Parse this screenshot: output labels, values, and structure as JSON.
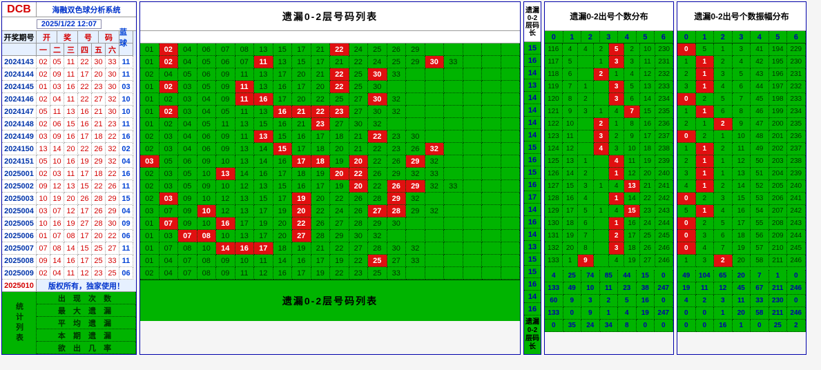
{
  "logo": "DCB",
  "system_title": "海融双色球分析系统",
  "datetime": "2025/1/22 12:07",
  "left_header": {
    "issue": "开奖期号",
    "kai": "开",
    "jiang": "奖",
    "hao": "号",
    "ma": "码",
    "cols": [
      "一",
      "二",
      "三",
      "四",
      "五",
      "六"
    ],
    "blue": "蓝球"
  },
  "current_issue": "2025010",
  "copyright": "版权所有，独家使用！",
  "stats_side": "统计列表",
  "stats_rows": [
    "出 现 次 数",
    "最 大 遗 漏",
    "平 均 遗 漏",
    "本 期 遗 漏",
    "欲 出 几 率"
  ],
  "mid_title": "遗漏0-2层号码列表",
  "mid_footer": "遗漏0-2层号码列表",
  "vbar_title": "遗漏0-2层码长",
  "vbar_values": [
    15,
    16,
    14,
    13,
    14,
    14,
    14,
    14,
    15,
    16,
    15,
    16,
    17,
    14,
    16,
    14,
    13,
    15,
    15,
    16,
    14,
    16
  ],
  "vbar_footer": "遗漏0-2层码长",
  "r1_title": "遗漏0-2出号个数分布",
  "r2_title": "遗漏0-2出号个数振幅分布",
  "r_hdr": [
    "0",
    "1",
    "2",
    "3",
    "4",
    "5",
    "6"
  ],
  "colors": {
    "green": "#00b400",
    "red": "#e01010",
    "dark_green_text": "#003300",
    "blue_text": "#0040d4",
    "red_text": "#d40000",
    "hdr_blue": "#0033cc"
  },
  "issues": [
    {
      "id": "2024143",
      "reds": [
        "02",
        "05",
        "11",
        "22",
        "30",
        "33"
      ],
      "blue": "11"
    },
    {
      "id": "2024144",
      "reds": [
        "02",
        "09",
        "11",
        "17",
        "20",
        "30"
      ],
      "blue": "11"
    },
    {
      "id": "2024145",
      "reds": [
        "01",
        "03",
        "16",
        "22",
        "23",
        "30"
      ],
      "blue": "03"
    },
    {
      "id": "2024146",
      "reds": [
        "02",
        "04",
        "11",
        "22",
        "27",
        "32"
      ],
      "blue": "10"
    },
    {
      "id": "2024147",
      "reds": [
        "05",
        "11",
        "13",
        "16",
        "21",
        "30"
      ],
      "blue": "10"
    },
    {
      "id": "2024148",
      "reds": [
        "02",
        "06",
        "15",
        "16",
        "21",
        "23"
      ],
      "blue": "11"
    },
    {
      "id": "2024149",
      "reds": [
        "03",
        "09",
        "16",
        "17",
        "18",
        "22"
      ],
      "blue": "16"
    },
    {
      "id": "2024150",
      "reds": [
        "13",
        "14",
        "20",
        "22",
        "26",
        "32"
      ],
      "blue": "02"
    },
    {
      "id": "2024151",
      "reds": [
        "05",
        "10",
        "16",
        "19",
        "29",
        "32"
      ],
      "blue": "04"
    },
    {
      "id": "2025001",
      "reds": [
        "02",
        "03",
        "11",
        "17",
        "18",
        "22"
      ],
      "blue": "16"
    },
    {
      "id": "2025002",
      "reds": [
        "09",
        "12",
        "13",
        "15",
        "22",
        "26"
      ],
      "blue": "11"
    },
    {
      "id": "2025003",
      "reds": [
        "10",
        "19",
        "20",
        "26",
        "28",
        "29"
      ],
      "blue": "15"
    },
    {
      "id": "2025004",
      "reds": [
        "03",
        "07",
        "12",
        "17",
        "26",
        "29"
      ],
      "blue": "04"
    },
    {
      "id": "2025005",
      "reds": [
        "10",
        "16",
        "19",
        "27",
        "28",
        "30"
      ],
      "blue": "09"
    },
    {
      "id": "2025006",
      "reds": [
        "01",
        "07",
        "08",
        "17",
        "20",
        "22"
      ],
      "blue": "06"
    },
    {
      "id": "2025007",
      "reds": [
        "07",
        "08",
        "14",
        "15",
        "25",
        "27"
      ],
      "blue": "11"
    },
    {
      "id": "2025008",
      "reds": [
        "09",
        "14",
        "16",
        "17",
        "25",
        "33"
      ],
      "blue": "11"
    },
    {
      "id": "2025009",
      "reds": [
        "02",
        "04",
        "11",
        "12",
        "23",
        "25"
      ],
      "blue": "06"
    }
  ],
  "mid_rows": [
    {
      "cells": [
        "01",
        "02",
        "04",
        "06",
        "07",
        "08",
        "13",
        "15",
        "17",
        "21",
        "22",
        "24",
        "25",
        "26",
        "29",
        "",
        "",
        "",
        "",
        ""
      ],
      "hi": [
        1,
        10
      ]
    },
    {
      "cells": [
        "01",
        "02",
        "04",
        "05",
        "06",
        "07",
        "11",
        "13",
        "15",
        "17",
        "21",
        "22",
        "24",
        "25",
        "29",
        "30",
        "33",
        "",
        "",
        ""
      ],
      "hi": [
        1,
        6,
        15
      ]
    },
    {
      "cells": [
        "02",
        "04",
        "05",
        "06",
        "09",
        "11",
        "13",
        "17",
        "20",
        "21",
        "22",
        "25",
        "30",
        "33",
        "",
        "",
        "",
        "",
        "",
        ""
      ],
      "hi": [
        10,
        12
      ]
    },
    {
      "cells": [
        "01",
        "02",
        "03",
        "05",
        "09",
        "11",
        "13",
        "16",
        "17",
        "20",
        "22",
        "25",
        "30",
        "",
        "",
        "",
        "",
        "",
        "",
        ""
      ],
      "hi": [
        1,
        5,
        10
      ]
    },
    {
      "cells": [
        "01",
        "02",
        "03",
        "04",
        "09",
        "11",
        "16",
        "17",
        "20",
        "22",
        "25",
        "27",
        "30",
        "32",
        "",
        "",
        "",
        "",
        "",
        ""
      ],
      "hi": [
        5,
        6,
        12
      ]
    },
    {
      "cells": [
        "01",
        "02",
        "03",
        "04",
        "05",
        "11",
        "13",
        "16",
        "21",
        "22",
        "23",
        "27",
        "30",
        "32",
        "",
        "",
        "",
        "",
        "",
        ""
      ],
      "hi": [
        1,
        7,
        8,
        9,
        10
      ]
    },
    {
      "cells": [
        "01",
        "02",
        "04",
        "05",
        "11",
        "13",
        "15",
        "16",
        "21",
        "23",
        "27",
        "30",
        "32",
        "",
        "",
        "",
        "",
        "",
        "",
        ""
      ],
      "hi": [
        9
      ]
    },
    {
      "cells": [
        "02",
        "03",
        "04",
        "06",
        "09",
        "11",
        "13",
        "15",
        "16",
        "17",
        "18",
        "21",
        "22",
        "23",
        "30",
        "",
        "",
        "",
        "",
        ""
      ],
      "hi": [
        6,
        12
      ]
    },
    {
      "cells": [
        "02",
        "03",
        "04",
        "06",
        "09",
        "13",
        "14",
        "15",
        "17",
        "18",
        "20",
        "21",
        "22",
        "23",
        "26",
        "32",
        "",
        "",
        "",
        ""
      ],
      "hi": [
        7,
        15
      ]
    },
    {
      "cells": [
        "03",
        "05",
        "06",
        "09",
        "10",
        "13",
        "14",
        "16",
        "17",
        "18",
        "19",
        "20",
        "22",
        "26",
        "29",
        "32",
        "",
        "",
        "",
        ""
      ],
      "hi": [
        0,
        8,
        9,
        11,
        14
      ]
    },
    {
      "cells": [
        "02",
        "03",
        "05",
        "10",
        "13",
        "14",
        "16",
        "17",
        "18",
        "19",
        "20",
        "22",
        "26",
        "29",
        "32",
        "33",
        "",
        "",
        "",
        ""
      ],
      "hi": [
        4,
        10,
        11
      ]
    },
    {
      "cells": [
        "02",
        "03",
        "05",
        "09",
        "10",
        "12",
        "13",
        "15",
        "16",
        "17",
        "19",
        "20",
        "22",
        "26",
        "29",
        "32",
        "33",
        "",
        "",
        ""
      ],
      "hi": [
        11,
        13,
        14
      ]
    },
    {
      "cells": [
        "02",
        "03",
        "09",
        "10",
        "12",
        "13",
        "15",
        "17",
        "19",
        "20",
        "22",
        "26",
        "28",
        "29",
        "32",
        "",
        "",
        "",
        "",
        ""
      ],
      "hi": [
        1,
        8,
        13
      ]
    },
    {
      "cells": [
        "03",
        "07",
        "09",
        "10",
        "12",
        "13",
        "17",
        "19",
        "20",
        "22",
        "24",
        "26",
        "27",
        "28",
        "29",
        "32",
        "",
        "",
        "",
        ""
      ],
      "hi": [
        3,
        8,
        12,
        13
      ]
    },
    {
      "cells": [
        "01",
        "07",
        "09",
        "10",
        "16",
        "17",
        "19",
        "20",
        "22",
        "26",
        "27",
        "28",
        "29",
        "30",
        "",
        "",
        "",
        "",
        "",
        ""
      ],
      "hi": [
        1,
        4,
        8
      ]
    },
    {
      "cells": [
        "01",
        "03",
        "07",
        "08",
        "10",
        "13",
        "17",
        "20",
        "27",
        "28",
        "29",
        "30",
        "32",
        "",
        "",
        "",
        "",
        "",
        "",
        ""
      ],
      "hi": [
        2,
        3,
        8
      ]
    },
    {
      "cells": [
        "01",
        "07",
        "08",
        "10",
        "14",
        "16",
        "17",
        "18",
        "19",
        "21",
        "22",
        "27",
        "28",
        "30",
        "32",
        "",
        "",
        "",
        "",
        ""
      ],
      "hi": [
        4,
        5,
        6
      ]
    },
    {
      "cells": [
        "01",
        "04",
        "07",
        "08",
        "09",
        "10",
        "11",
        "14",
        "16",
        "17",
        "19",
        "22",
        "25",
        "27",
        "33",
        "",
        "",
        "",
        "",
        ""
      ],
      "hi": [
        12
      ]
    },
    {
      "cells": [
        "02",
        "04",
        "07",
        "08",
        "09",
        "11",
        "12",
        "16",
        "17",
        "19",
        "22",
        "23",
        "25",
        "33",
        "",
        "",
        "",
        "",
        "",
        ""
      ],
      "hi": []
    }
  ],
  "r1_rows": [
    {
      "v": [
        "116",
        "4",
        "4",
        "2",
        "5",
        "2",
        "10",
        "230"
      ],
      "hi": [
        3
      ]
    },
    {
      "v": [
        "117",
        "5",
        "",
        "1",
        "3",
        "3",
        "11",
        "231"
      ],
      "hi": [
        3
      ]
    },
    {
      "v": [
        "118",
        "6",
        "",
        "2",
        "1",
        "4",
        "12",
        "232"
      ],
      "hi": [
        2
      ]
    },
    {
      "v": [
        "119",
        "7",
        "1",
        "",
        "3",
        "5",
        "13",
        "233"
      ],
      "hi": [
        3
      ]
    },
    {
      "v": [
        "120",
        "8",
        "2",
        "",
        "3",
        "6",
        "14",
        "234"
      ],
      "hi": [
        3
      ]
    },
    {
      "v": [
        "121",
        "9",
        "3",
        "1",
        "4",
        "7",
        "15",
        "235"
      ],
      "hi": [
        4
      ]
    },
    {
      "v": [
        "122",
        "10",
        "",
        "2",
        "1",
        "8",
        "16",
        "236"
      ],
      "hi": [
        2
      ]
    },
    {
      "v": [
        "123",
        "11",
        "",
        "3",
        "2",
        "9",
        "17",
        "237"
      ],
      "hi": [
        2
      ]
    },
    {
      "v": [
        "124",
        "12",
        "",
        "4",
        "3",
        "10",
        "18",
        "238"
      ],
      "hi": [
        2
      ]
    },
    {
      "v": [
        "125",
        "13",
        "1",
        "",
        "4",
        "11",
        "19",
        "239"
      ],
      "hi": [
        3
      ]
    },
    {
      "v": [
        "126",
        "14",
        "2",
        "",
        "1",
        "12",
        "20",
        "240"
      ],
      "hi": [
        3
      ]
    },
    {
      "v": [
        "127",
        "15",
        "3",
        "1",
        "4",
        "13",
        "21",
        "241"
      ],
      "hi": [
        4
      ]
    },
    {
      "v": [
        "128",
        "16",
        "4",
        "",
        "1",
        "14",
        "22",
        "242"
      ],
      "hi": [
        3
      ]
    },
    {
      "v": [
        "129",
        "17",
        "5",
        "1",
        "4",
        "15",
        "23",
        "243"
      ],
      "hi": [
        4
      ]
    },
    {
      "v": [
        "130",
        "18",
        "6",
        "",
        "1",
        "16",
        "24",
        "244"
      ],
      "hi": [
        3
      ]
    },
    {
      "v": [
        "131",
        "19",
        "7",
        "",
        "2",
        "17",
        "25",
        "245"
      ],
      "hi": [
        3
      ]
    },
    {
      "v": [
        "132",
        "20",
        "8",
        "",
        "3",
        "18",
        "26",
        "246"
      ],
      "hi": [
        3
      ]
    },
    {
      "v": [
        "133",
        "1",
        "9",
        "",
        "4",
        "19",
        "27",
        "246"
      ],
      "hi": [
        1
      ]
    }
  ],
  "r2_rows": [
    {
      "v": [
        "0",
        "5",
        "1",
        "3",
        "41",
        "194",
        "229"
      ],
      "hi": [
        0
      ]
    },
    {
      "v": [
        "1",
        "1",
        "2",
        "4",
        "42",
        "195",
        "230"
      ],
      "hi": [
        1
      ]
    },
    {
      "v": [
        "2",
        "1",
        "3",
        "5",
        "43",
        "196",
        "231"
      ],
      "hi": [
        1
      ]
    },
    {
      "v": [
        "3",
        "1",
        "4",
        "6",
        "44",
        "197",
        "232"
      ],
      "hi": [
        1
      ]
    },
    {
      "v": [
        "0",
        "2",
        "5",
        "7",
        "45",
        "198",
        "233"
      ],
      "hi": [
        0
      ]
    },
    {
      "v": [
        "1",
        "1",
        "6",
        "8",
        "46",
        "199",
        "234"
      ],
      "hi": [
        1
      ]
    },
    {
      "v": [
        "2",
        "1",
        "2",
        "9",
        "47",
        "200",
        "235"
      ],
      "hi": [
        2
      ]
    },
    {
      "v": [
        "0",
        "2",
        "1",
        "10",
        "48",
        "201",
        "236"
      ],
      "hi": [
        0
      ]
    },
    {
      "v": [
        "1",
        "1",
        "2",
        "11",
        "49",
        "202",
        "237"
      ],
      "hi": [
        1
      ]
    },
    {
      "v": [
        "2",
        "1",
        "1",
        "12",
        "50",
        "203",
        "238"
      ],
      "hi": [
        1
      ]
    },
    {
      "v": [
        "3",
        "1",
        "1",
        "13",
        "51",
        "204",
        "239"
      ],
      "hi": [
        1
      ]
    },
    {
      "v": [
        "4",
        "1",
        "2",
        "14",
        "52",
        "205",
        "240"
      ],
      "hi": [
        1
      ]
    },
    {
      "v": [
        "0",
        "2",
        "3",
        "15",
        "53",
        "206",
        "241"
      ],
      "hi": [
        0
      ]
    },
    {
      "v": [
        "5",
        "1",
        "4",
        "16",
        "54",
        "207",
        "242"
      ],
      "hi": [
        1
      ]
    },
    {
      "v": [
        "0",
        "2",
        "5",
        "17",
        "55",
        "208",
        "243"
      ],
      "hi": [
        0
      ]
    },
    {
      "v": [
        "0",
        "3",
        "6",
        "18",
        "56",
        "209",
        "244"
      ],
      "hi": [
        0
      ]
    },
    {
      "v": [
        "0",
        "4",
        "7",
        "19",
        "57",
        "210",
        "245"
      ],
      "hi": [
        0
      ]
    },
    {
      "v": [
        "1",
        "3",
        "2",
        "20",
        "58",
        "211",
        "246"
      ],
      "hi": [
        2
      ]
    }
  ],
  "r1_stats": [
    [
      "4",
      "25",
      "74",
      "85",
      "44",
      "15",
      "0"
    ],
    [
      "133",
      "49",
      "10",
      "11",
      "23",
      "38",
      "247"
    ],
    [
      "60",
      "9",
      "3",
      "2",
      "5",
      "16",
      "0"
    ],
    [
      "133",
      "0",
      "9",
      "1",
      "4",
      "19",
      "247"
    ],
    [
      "0",
      "35",
      "24",
      "34",
      "8",
      "0",
      "0"
    ]
  ],
  "r2_stats": [
    [
      "49",
      "104",
      "65",
      "20",
      "7",
      "1",
      "0"
    ],
    [
      "19",
      "11",
      "12",
      "45",
      "67",
      "211",
      "246"
    ],
    [
      "4",
      "2",
      "3",
      "11",
      "33",
      "230",
      "0"
    ],
    [
      "0",
      "0",
      "1",
      "20",
      "58",
      "211",
      "246"
    ],
    [
      "0",
      "0",
      "16",
      "1",
      "0",
      "25",
      "2"
    ]
  ]
}
